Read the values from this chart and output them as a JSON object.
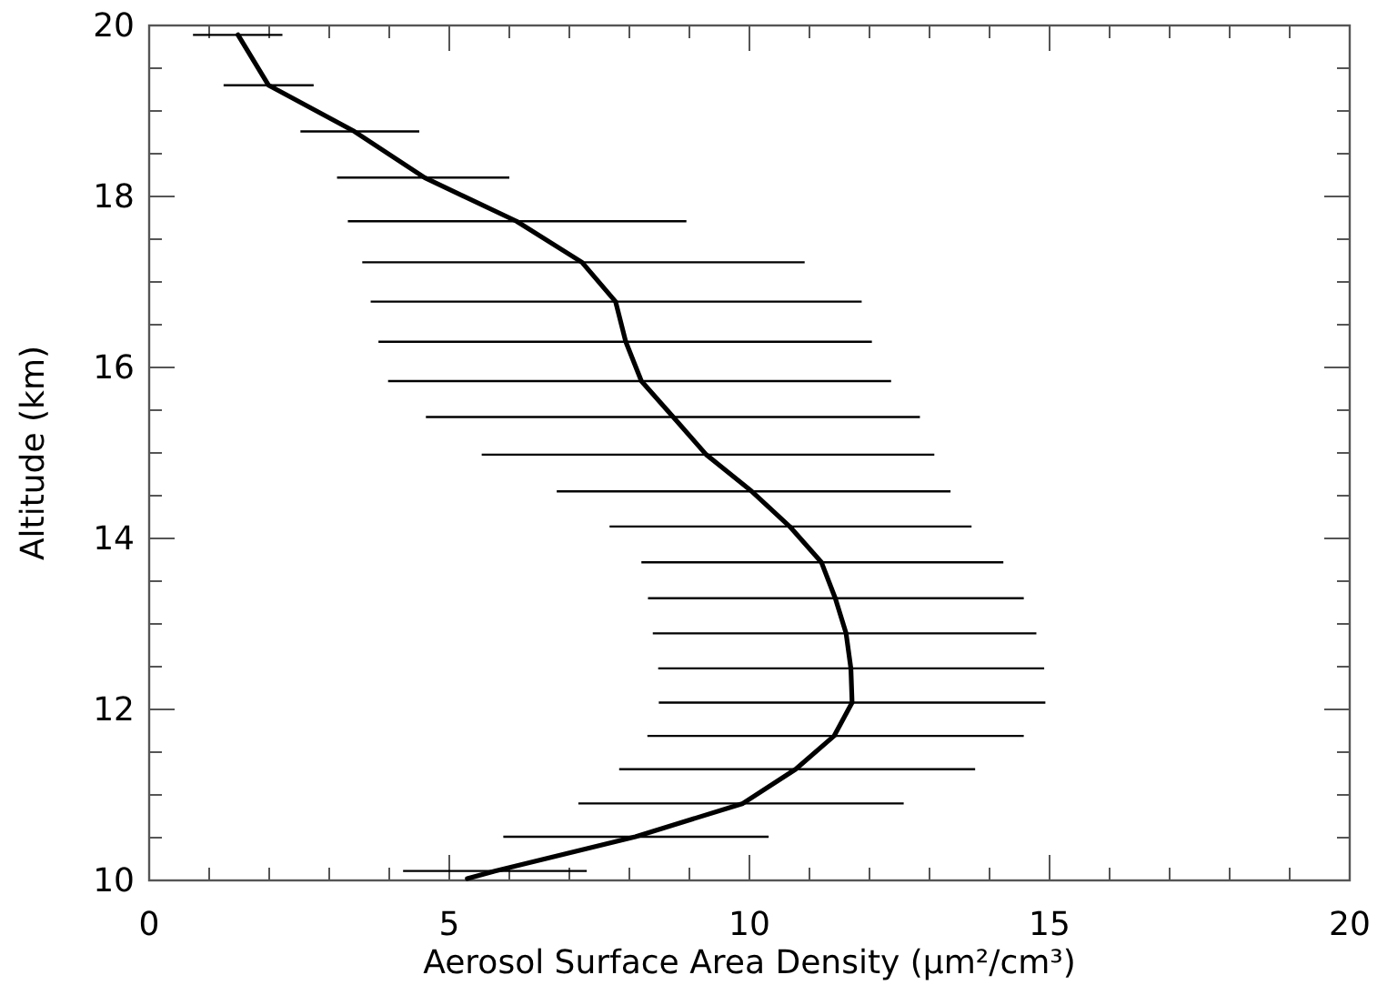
{
  "chart_data": {
    "type": "line",
    "xlabel": "Aerosol Surface Area Density (μm²/cm³)",
    "ylabel": "Altitude (km)",
    "xlim": [
      0,
      20
    ],
    "ylim": [
      10,
      20
    ],
    "xticks": [
      0,
      {
        "value": 1,
        "label": null
      },
      {
        "value": 2,
        "label": null
      },
      {
        "value": 3,
        "label": null
      },
      {
        "value": 4,
        "label": null
      },
      5,
      {
        "value": 6,
        "label": null
      },
      {
        "value": 7,
        "label": null
      },
      {
        "value": 8,
        "label": null
      },
      {
        "value": 9,
        "label": null
      },
      10,
      {
        "value": 11,
        "label": null
      },
      {
        "value": 12,
        "label": null
      },
      {
        "value": 13,
        "label": null
      },
      {
        "value": 14,
        "label": null
      },
      15,
      {
        "value": 16,
        "label": null
      },
      {
        "value": 17,
        "label": null
      },
      {
        "value": 18,
        "label": null
      },
      {
        "value": 19,
        "label": null
      },
      20
    ],
    "yticks": [
      10,
      {
        "value": 10.5,
        "label": null
      },
      12,
      {
        "value": 11,
        "label": null
      },
      {
        "value": 11.5,
        "label": null
      },
      {
        "value": 12.5,
        "label": null
      },
      {
        "value": 13,
        "label": null
      },
      {
        "value": 13.5,
        "label": null
      },
      14,
      {
        "value": 14.5,
        "label": null
      },
      {
        "value": 15,
        "label": null
      },
      {
        "value": 15.5,
        "label": null
      },
      16,
      {
        "value": 16.5,
        "label": null
      },
      {
        "value": 17,
        "label": null
      },
      {
        "value": 17.5,
        "label": null
      },
      18,
      {
        "value": 18.5,
        "label": null
      },
      {
        "value": 19,
        "label": null
      },
      {
        "value": 19.5,
        "label": null
      },
      20
    ],
    "grid": false,
    "marker": "none",
    "line_style": "solid",
    "series": [
      {
        "color": "#000000",
        "x": [
          1.48,
          1.99,
          3.42,
          4.59,
          6.12,
          7.21,
          7.77,
          7.94,
          8.2,
          8.73,
          9.28,
          10.04,
          10.67,
          11.2,
          11.43,
          11.61,
          11.69,
          11.71,
          11.41,
          10.77,
          9.89,
          8.1,
          5.76,
          5.3
        ],
        "values": [
          19.89,
          19.3,
          18.76,
          18.22,
          17.71,
          17.23,
          16.77,
          16.3,
          15.84,
          15.42,
          14.98,
          14.55,
          14.14,
          13.72,
          13.3,
          12.89,
          12.48,
          12.08,
          11.69,
          11.3,
          10.9,
          10.51,
          10.11,
          10.02
        ],
        "xerrors": [
          [
            0.73,
            2.22
          ],
          [
            1.24,
            2.74
          ],
          [
            2.52,
            4.5
          ],
          [
            3.13,
            6.0
          ],
          [
            3.31,
            8.95
          ],
          [
            3.55,
            10.92
          ],
          [
            3.69,
            11.87
          ],
          [
            3.82,
            12.04
          ],
          [
            3.98,
            12.36
          ],
          [
            4.61,
            12.84
          ],
          [
            5.54,
            13.08
          ],
          [
            6.79,
            13.35
          ],
          [
            7.67,
            13.7
          ],
          [
            8.2,
            14.23
          ],
          [
            8.31,
            14.57
          ],
          [
            8.39,
            14.78
          ],
          [
            8.48,
            14.91
          ],
          [
            8.49,
            14.93
          ],
          [
            8.3,
            14.57
          ],
          [
            7.83,
            13.76
          ],
          [
            7.15,
            12.57
          ],
          [
            5.9,
            10.32
          ],
          [
            4.23,
            7.29
          ],
          null
        ]
      }
    ]
  }
}
